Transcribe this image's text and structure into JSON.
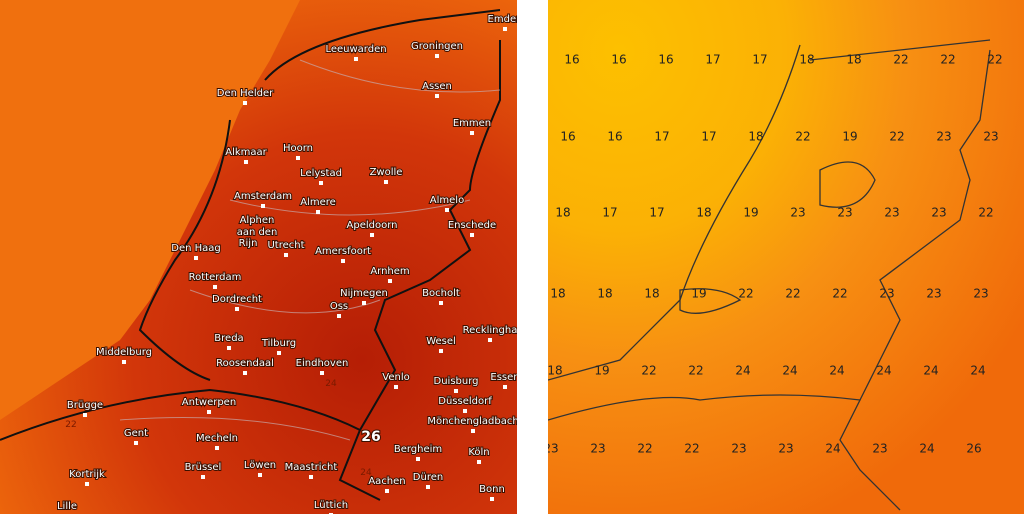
{
  "left_map": {
    "cities": [
      "Emden",
      "Leeuwarden",
      "Groningen",
      "Den Helder",
      "Assen",
      "Emmen",
      "Alkmaar",
      "Hoorn",
      "Lelystad",
      "Zwolle",
      "Amsterdam",
      "Almere",
      "Almelo",
      "Alphen",
      "aan den",
      "Rijn",
      "Utrecht",
      "Apeldoorn",
      "Enschede",
      "Den Haag",
      "Amersfoort",
      "Rotterdam",
      "Arnhem",
      "Dordrecht",
      "Nijmegen",
      "Bocholt",
      "Oss",
      "Breda",
      "Tilburg",
      "Recklingha",
      "Middelburg",
      "Roosendaal",
      "Eindhoven",
      "Wesel",
      "Venlo",
      "Duisburg",
      "Essen",
      "Brügge",
      "Antwerpen",
      "Düsseldorf",
      "Gent",
      "Mecheln",
      "Mönchengladbach",
      "Brüssel",
      "Löwen",
      "Maastricht",
      "Bergheim",
      "Köln",
      "Kortrijk",
      "Düren",
      "Aachen",
      "Bonn",
      "Lüttich",
      "Lille"
    ],
    "labels": [
      "22",
      "24",
      "26",
      "24"
    ]
  },
  "right_map": {
    "rows": [
      [
        16,
        16,
        16,
        17,
        17,
        18,
        18,
        22,
        22,
        22
      ],
      [
        16,
        16,
        17,
        17,
        18,
        22,
        19,
        22,
        23,
        23
      ],
      [
        18,
        17,
        17,
        18,
        19,
        23,
        23,
        23,
        23,
        22
      ],
      [
        18,
        18,
        18,
        19,
        22,
        22,
        22,
        23,
        23,
        23
      ],
      [
        18,
        19,
        22,
        22,
        24,
        24,
        24,
        24,
        24,
        24
      ],
      [
        23,
        23,
        22,
        22,
        23,
        23,
        24,
        23,
        24,
        26
      ]
    ]
  }
}
